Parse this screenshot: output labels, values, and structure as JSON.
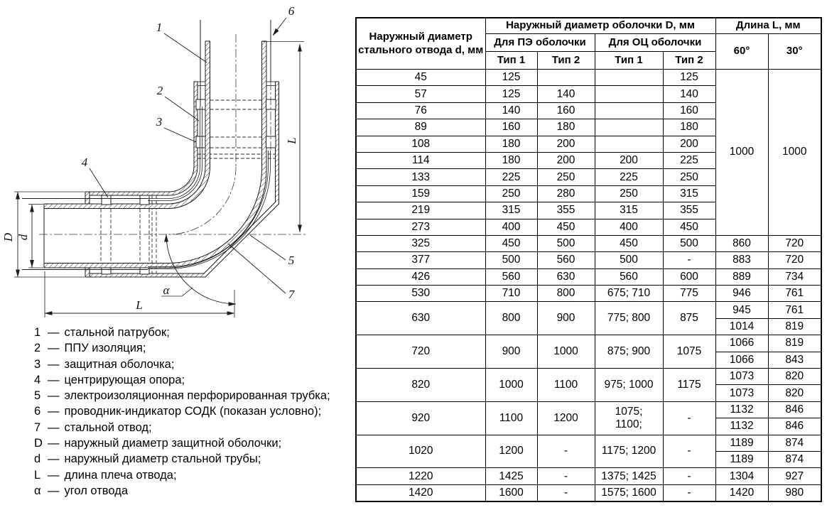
{
  "diagram": {
    "callouts": {
      "c1": "1",
      "c2": "2",
      "c3": "3",
      "c4": "4",
      "c5": "5",
      "c6": "6",
      "c7": "7"
    },
    "dims": {
      "D": "D",
      "d": "d",
      "L_right": "L",
      "L_bottom": "L",
      "alpha": "α"
    }
  },
  "legend": {
    "separator": "—",
    "items": [
      {
        "key": "1",
        "text": "стальной патрубок;"
      },
      {
        "key": "2",
        "text": "ППУ изоляция;"
      },
      {
        "key": "3",
        "text": "защитная оболочка;"
      },
      {
        "key": "4",
        "text": "центрирующая опора;"
      },
      {
        "key": "5",
        "text": "электроизоляционная перфорированная трубка;"
      },
      {
        "key": "6",
        "text": "проводник-индикатор СОДК (показан условно);"
      },
      {
        "key": "7",
        "text": "стальной отвод;"
      },
      {
        "key": "D",
        "text": "наружный диаметр защитной оболочки;"
      },
      {
        "key": "d",
        "text": "наружный диаметр стальной трубы;"
      },
      {
        "key": "L",
        "text": "длина плеча отвода;"
      },
      {
        "key": "α",
        "text": "угол отвода"
      }
    ]
  },
  "table": {
    "header": {
      "col_d": "Наружный диаметр стального отвода d, мм",
      "group_shell": "Наружный диаметр оболочки D, мм",
      "group_length": "Длина L, мм",
      "pe": "Для ПЭ оболочки",
      "oc": "Для ОЦ оболочки",
      "type1": "Тип 1",
      "type2": "Тип 2",
      "deg60": "60°",
      "deg30": "30°"
    },
    "rows": [
      [
        {
          "t": "45"
        },
        {
          "t": "125"
        },
        {
          "t": ""
        },
        {
          "t": ""
        },
        {
          "t": "125"
        },
        {
          "t": "1000",
          "rs": 10
        },
        {
          "t": "1000",
          "rs": 10
        }
      ],
      [
        {
          "t": "57"
        },
        {
          "t": "125"
        },
        {
          "t": "140"
        },
        {
          "t": ""
        },
        {
          "t": "140"
        }
      ],
      [
        {
          "t": "76"
        },
        {
          "t": "140"
        },
        {
          "t": "160"
        },
        {
          "t": ""
        },
        {
          "t": "160"
        }
      ],
      [
        {
          "t": "89"
        },
        {
          "t": "160"
        },
        {
          "t": "180"
        },
        {
          "t": ""
        },
        {
          "t": "180"
        }
      ],
      [
        {
          "t": "108"
        },
        {
          "t": "180"
        },
        {
          "t": "200"
        },
        {
          "t": ""
        },
        {
          "t": "200"
        }
      ],
      [
        {
          "t": "114"
        },
        {
          "t": "180"
        },
        {
          "t": "200"
        },
        {
          "t": "200"
        },
        {
          "t": "225"
        }
      ],
      [
        {
          "t": "133"
        },
        {
          "t": "225"
        },
        {
          "t": "250"
        },
        {
          "t": "225"
        },
        {
          "t": "250"
        }
      ],
      [
        {
          "t": "159"
        },
        {
          "t": "250"
        },
        {
          "t": "280"
        },
        {
          "t": "250"
        },
        {
          "t": "315"
        }
      ],
      [
        {
          "t": "219"
        },
        {
          "t": "315"
        },
        {
          "t": "355"
        },
        {
          "t": "315"
        },
        {
          "t": "355"
        }
      ],
      [
        {
          "t": "273"
        },
        {
          "t": "400"
        },
        {
          "t": "450"
        },
        {
          "t": "400"
        },
        {
          "t": "450"
        }
      ],
      [
        {
          "t": "325"
        },
        {
          "t": "450"
        },
        {
          "t": "500"
        },
        {
          "t": "450"
        },
        {
          "t": "500"
        },
        {
          "t": "860"
        },
        {
          "t": "720"
        }
      ],
      [
        {
          "t": "377"
        },
        {
          "t": "500"
        },
        {
          "t": "560"
        },
        {
          "t": "500"
        },
        {
          "t": "-"
        },
        {
          "t": "883"
        },
        {
          "t": "720"
        }
      ],
      [
        {
          "t": "426"
        },
        {
          "t": "560"
        },
        {
          "t": "630"
        },
        {
          "t": "560"
        },
        {
          "t": "600"
        },
        {
          "t": "889"
        },
        {
          "t": "734"
        }
      ],
      [
        {
          "t": "530"
        },
        {
          "t": "710"
        },
        {
          "t": "800"
        },
        {
          "t": "675; 710"
        },
        {
          "t": "775"
        },
        {
          "t": "946"
        },
        {
          "t": "761"
        }
      ],
      [
        {
          "t": "630",
          "rs": 2
        },
        {
          "t": "800",
          "rs": 2
        },
        {
          "t": "900",
          "rs": 2
        },
        {
          "t": "775; 800",
          "rs": 2
        },
        {
          "t": "875",
          "rs": 2
        },
        {
          "t": "945"
        },
        {
          "t": "761"
        }
      ],
      [
        {
          "t": "1014"
        },
        {
          "t": "819"
        }
      ],
      [
        {
          "t": "720",
          "rs": 2
        },
        {
          "t": "900",
          "rs": 2
        },
        {
          "t": "1000",
          "rs": 2
        },
        {
          "t": "875; 900",
          "rs": 2
        },
        {
          "t": "1075",
          "rs": 2
        },
        {
          "t": "1066"
        },
        {
          "t": "819"
        }
      ],
      [
        {
          "t": "1066"
        },
        {
          "t": "843"
        }
      ],
      [
        {
          "t": "820",
          "rs": 2
        },
        {
          "t": "1000",
          "rs": 2
        },
        {
          "t": "1100",
          "rs": 2
        },
        {
          "t": "975; 1000",
          "rs": 2
        },
        {
          "t": "1175",
          "rs": 2
        },
        {
          "t": "1073"
        },
        {
          "t": "820"
        }
      ],
      [
        {
          "t": "1073"
        },
        {
          "t": "820"
        }
      ],
      [
        {
          "t": "920",
          "rs": 2
        },
        {
          "t": "1100",
          "rs": 2
        },
        {
          "t": "1200",
          "rs": 2
        },
        {
          "t": "1075;\n1100;",
          "rs": 2
        },
        {
          "t": "-",
          "rs": 2
        },
        {
          "t": "1132"
        },
        {
          "t": "846"
        }
      ],
      [
        {
          "t": "1132"
        },
        {
          "t": "846"
        }
      ],
      [
        {
          "t": "1020",
          "rs": 2
        },
        {
          "t": "1200",
          "rs": 2
        },
        {
          "t": "-",
          "rs": 2
        },
        {
          "t": "1175; 1200",
          "rs": 2
        },
        {
          "t": "-",
          "rs": 2
        },
        {
          "t": "1189"
        },
        {
          "t": "874"
        }
      ],
      [
        {
          "t": "1189"
        },
        {
          "t": "874"
        }
      ],
      [
        {
          "t": "1220"
        },
        {
          "t": "1425"
        },
        {
          "t": "-"
        },
        {
          "t": "1375; 1425"
        },
        {
          "t": "-"
        },
        {
          "t": "1304"
        },
        {
          "t": "927"
        }
      ],
      [
        {
          "t": "1420"
        },
        {
          "t": "1600"
        },
        {
          "t": "-"
        },
        {
          "t": "1575; 1600"
        },
        {
          "t": "-"
        },
        {
          "t": "1420"
        },
        {
          "t": "980"
        }
      ]
    ]
  }
}
